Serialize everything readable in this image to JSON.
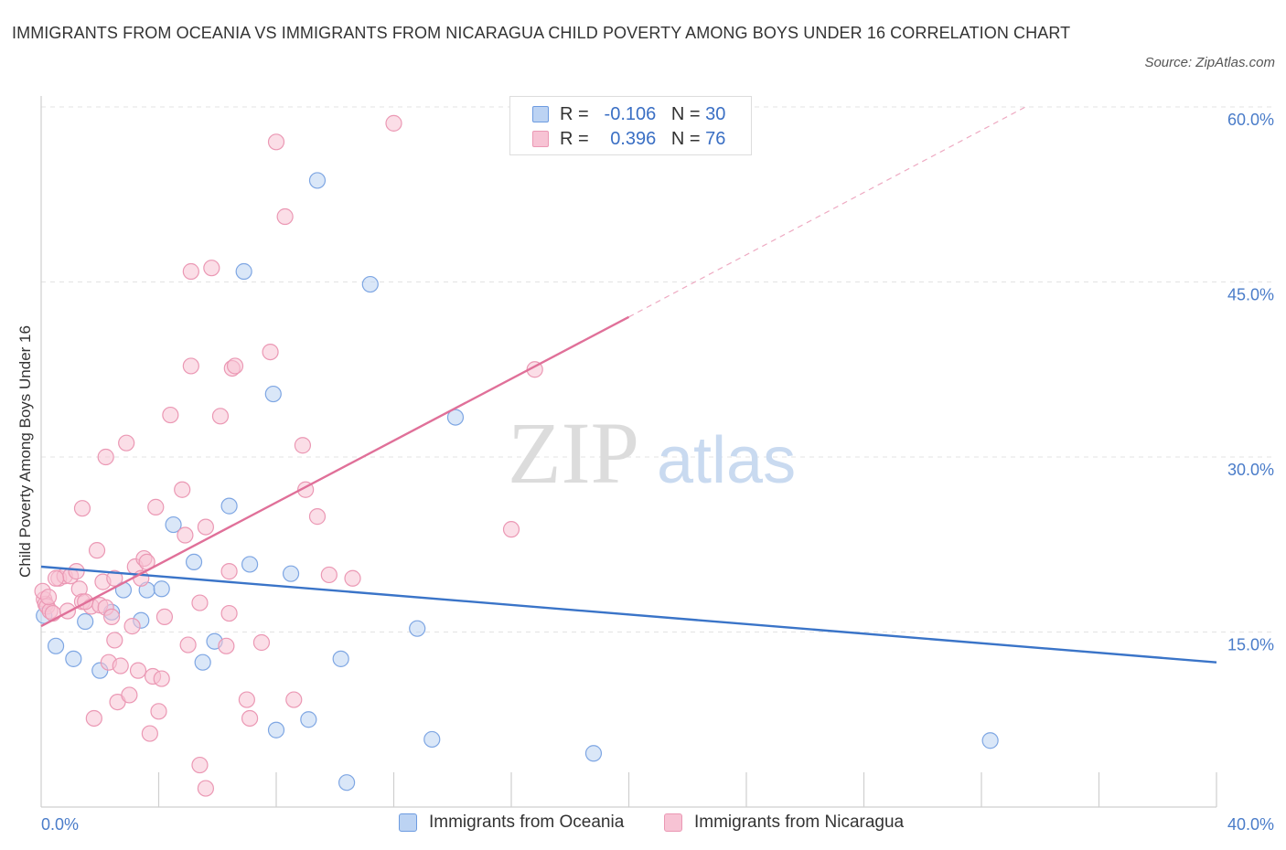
{
  "title": "IMMIGRANTS FROM OCEANIA VS IMMIGRANTS FROM NICARAGUA CHILD POVERTY AMONG BOYS UNDER 16 CORRELATION CHART",
  "source": "Source: ZipAtlas.com",
  "watermark": {
    "zip": "ZIP",
    "atlas": "atlas"
  },
  "colors": {
    "blue": "#3a74c8",
    "blue_fill": "#bcd3f3",
    "pink": "#e07099",
    "pink_fill": "#f7c3d4",
    "grid": "#e3e3e3",
    "tick_text": "#4a7cc9"
  },
  "legend": {
    "rows": [
      {
        "r_label": "R =",
        "r_value": "-0.106",
        "n_label": "N =",
        "n_value": "30"
      },
      {
        "r_label": "R =",
        "r_value": "0.396",
        "n_label": "N =",
        "n_value": "76"
      }
    ]
  },
  "bottom_legend": [
    "Immigrants from Oceania",
    "Immigrants from Nicaragua"
  ],
  "chart_data": {
    "type": "scatter",
    "title": "IMMIGRANTS FROM OCEANIA VS IMMIGRANTS FROM NICARAGUA CHILD POVERTY AMONG BOYS UNDER 16 CORRELATION CHART",
    "xlabel": "",
    "ylabel": "Child Poverty Among Boys Under 16",
    "xlim": [
      0,
      40
    ],
    "ylim": [
      0,
      60
    ],
    "x_tick_labels": [
      "0.0%",
      "40.0%"
    ],
    "y_ticks": [
      15,
      30,
      45,
      60
    ],
    "y_tick_labels": [
      "15.0%",
      "30.0%",
      "45.0%",
      "60.0%"
    ],
    "grid": true,
    "legend_position": "top-center",
    "series": [
      {
        "name": "Immigrants from Oceania",
        "color": "#3a74c8",
        "points": [
          [
            0.1,
            16.4
          ],
          [
            0.5,
            13.8
          ],
          [
            1.1,
            12.7
          ],
          [
            1.5,
            15.9
          ],
          [
            2.0,
            11.7
          ],
          [
            2.4,
            16.7
          ],
          [
            2.8,
            18.6
          ],
          [
            3.4,
            16.0
          ],
          [
            3.6,
            18.6
          ],
          [
            4.1,
            18.7
          ],
          [
            4.5,
            24.2
          ],
          [
            5.2,
            21.0
          ],
          [
            5.5,
            12.4
          ],
          [
            5.9,
            14.2
          ],
          [
            6.4,
            25.8
          ],
          [
            6.9,
            45.9
          ],
          [
            7.1,
            20.8
          ],
          [
            7.9,
            35.4
          ],
          [
            8.0,
            6.6
          ],
          [
            8.5,
            20.0
          ],
          [
            9.1,
            7.5
          ],
          [
            9.4,
            53.7
          ],
          [
            10.2,
            12.7
          ],
          [
            10.4,
            2.1
          ],
          [
            11.2,
            44.8
          ],
          [
            12.8,
            15.3
          ],
          [
            13.3,
            5.8
          ],
          [
            14.1,
            33.4
          ],
          [
            18.8,
            4.6
          ],
          [
            32.3,
            5.7
          ]
        ],
        "trend": {
          "x": [
            0,
            40
          ],
          "y": [
            20.6,
            12.4
          ]
        }
      },
      {
        "name": "Immigrants from Nicaragua",
        "color": "#e07099",
        "points": [
          [
            0.1,
            17.8
          ],
          [
            0.15,
            17.4
          ],
          [
            0.2,
            17.2
          ],
          [
            0.3,
            16.8
          ],
          [
            0.4,
            16.6
          ],
          [
            0.6,
            19.6
          ],
          [
            0.8,
            19.8
          ],
          [
            0.9,
            16.8
          ],
          [
            1.0,
            19.8
          ],
          [
            1.2,
            20.2
          ],
          [
            1.3,
            18.7
          ],
          [
            1.4,
            17.6
          ],
          [
            1.4,
            25.6
          ],
          [
            1.7,
            17.2
          ],
          [
            1.8,
            7.6
          ],
          [
            1.9,
            22.0
          ],
          [
            2.0,
            17.3
          ],
          [
            2.1,
            19.3
          ],
          [
            2.2,
            17.1
          ],
          [
            2.3,
            12.4
          ],
          [
            2.2,
            30.0
          ],
          [
            2.4,
            16.3
          ],
          [
            2.5,
            19.6
          ],
          [
            2.5,
            14.3
          ],
          [
            2.6,
            9.0
          ],
          [
            2.7,
            12.1
          ],
          [
            2.9,
            31.2
          ],
          [
            3.0,
            9.6
          ],
          [
            3.1,
            15.5
          ],
          [
            3.2,
            20.6
          ],
          [
            3.3,
            11.7
          ],
          [
            3.4,
            19.6
          ],
          [
            3.5,
            21.3
          ],
          [
            3.6,
            21.0
          ],
          [
            3.7,
            6.3
          ],
          [
            3.8,
            11.2
          ],
          [
            3.9,
            25.7
          ],
          [
            4.0,
            8.2
          ],
          [
            4.1,
            11.0
          ],
          [
            4.2,
            16.3
          ],
          [
            4.4,
            33.6
          ],
          [
            4.8,
            27.2
          ],
          [
            4.9,
            23.3
          ],
          [
            5.0,
            13.9
          ],
          [
            5.1,
            37.8
          ],
          [
            5.1,
            45.9
          ],
          [
            5.4,
            17.5
          ],
          [
            5.4,
            3.6
          ],
          [
            5.6,
            1.6
          ],
          [
            5.6,
            24.0
          ],
          [
            5.8,
            46.2
          ],
          [
            6.1,
            33.5
          ],
          [
            6.3,
            13.8
          ],
          [
            6.4,
            16.6
          ],
          [
            6.4,
            20.2
          ],
          [
            6.5,
            37.6
          ],
          [
            6.6,
            37.8
          ],
          [
            7.0,
            9.2
          ],
          [
            7.1,
            7.6
          ],
          [
            7.5,
            14.1
          ],
          [
            7.8,
            39.0
          ],
          [
            8.0,
            57.0
          ],
          [
            8.3,
            50.6
          ],
          [
            8.6,
            9.2
          ],
          [
            8.9,
            31.0
          ],
          [
            9.0,
            27.2
          ],
          [
            9.4,
            24.9
          ],
          [
            9.8,
            19.9
          ],
          [
            10.6,
            19.6
          ],
          [
            12.0,
            58.6
          ],
          [
            16.0,
            23.8
          ],
          [
            16.8,
            37.5
          ],
          [
            0.05,
            18.5
          ],
          [
            0.25,
            18.0
          ],
          [
            0.5,
            19.6
          ],
          [
            1.5,
            17.6
          ]
        ],
        "trend": {
          "x": [
            0,
            20
          ],
          "y": [
            15.5,
            42.0
          ]
        },
        "trend_extension": {
          "x": [
            20,
            33.5
          ],
          "y": [
            42.0,
            60.0
          ]
        }
      }
    ]
  }
}
